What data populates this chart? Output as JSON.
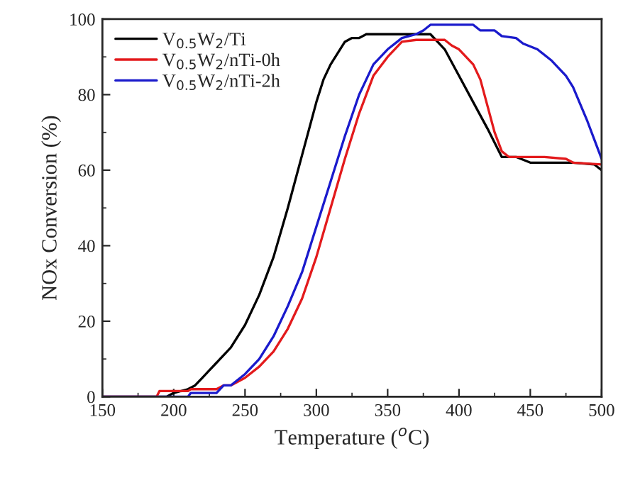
{
  "chart_data": {
    "type": "line",
    "xlabel": "Temperature ($^{o}$C)",
    "ylabel": "NOx Conversion (%)",
    "xlim": [
      150,
      500
    ],
    "xticks": [
      150,
      200,
      250,
      300,
      350,
      400,
      450,
      500
    ],
    "ylim": [
      0,
      100
    ],
    "yticks": [
      0,
      20,
      40,
      60,
      80,
      100
    ],
    "grid": false,
    "legend": "top left",
    "marker": "none",
    "line_style": "solid",
    "series": [
      {
        "name": "V$_{0.5}$W$_{2}$/Ti",
        "color": "#000000",
        "x": [
          150,
          195,
          200,
          210,
          215,
          220,
          225,
          230,
          240,
          250,
          260,
          270,
          280,
          290,
          300,
          305,
          310,
          320,
          325,
          330,
          335,
          380,
          390,
          400,
          410,
          420,
          430,
          440,
          450,
          480,
          495,
          500
        ],
        "values": [
          0,
          0,
          1,
          2,
          3,
          5,
          7,
          9,
          13,
          19,
          27,
          37,
          50,
          64,
          78,
          84,
          88,
          94,
          95,
          95,
          96,
          96,
          92,
          85,
          78,
          71,
          63.5,
          63.5,
          62,
          62,
          61.5,
          60
        ]
      },
      {
        "name": "V$_{0.5}$W$_{2}$/nTi-0h",
        "color": "#e31a1c",
        "x": [
          150,
          188,
          190,
          210,
          212,
          230,
          235,
          240,
          250,
          260,
          270,
          280,
          290,
          300,
          310,
          320,
          330,
          340,
          350,
          360,
          370,
          390,
          395,
          400,
          410,
          415,
          420,
          425,
          430,
          435,
          460,
          475,
          480,
          500
        ],
        "values": [
          0,
          0,
          1.5,
          1.5,
          2,
          2,
          3,
          3,
          5,
          8,
          12,
          18,
          26,
          37,
          50,
          63,
          75,
          85,
          90,
          94,
          94.5,
          94.5,
          93,
          92,
          88,
          84,
          77,
          70,
          65,
          63.5,
          63.5,
          63,
          62,
          61.5
        ]
      },
      {
        "name": "V$_{0.5}$W$_{2}$/nTi-2h",
        "color": "#1a1acc",
        "x": [
          150,
          210,
          212,
          230,
          235,
          240,
          250,
          260,
          270,
          280,
          290,
          300,
          310,
          320,
          330,
          340,
          350,
          360,
          370,
          375,
          380,
          410,
          415,
          425,
          430,
          440,
          445,
          455,
          465,
          475,
          480,
          490,
          495,
          500
        ],
        "values": [
          0,
          0,
          1,
          1,
          3,
          3,
          6,
          10,
          16,
          24,
          33,
          45,
          57,
          69,
          80,
          88,
          92,
          95,
          96,
          97,
          98.5,
          98.5,
          97,
          97,
          95.5,
          95,
          93.5,
          92,
          89,
          85,
          82,
          73,
          68,
          63
        ]
      }
    ]
  }
}
